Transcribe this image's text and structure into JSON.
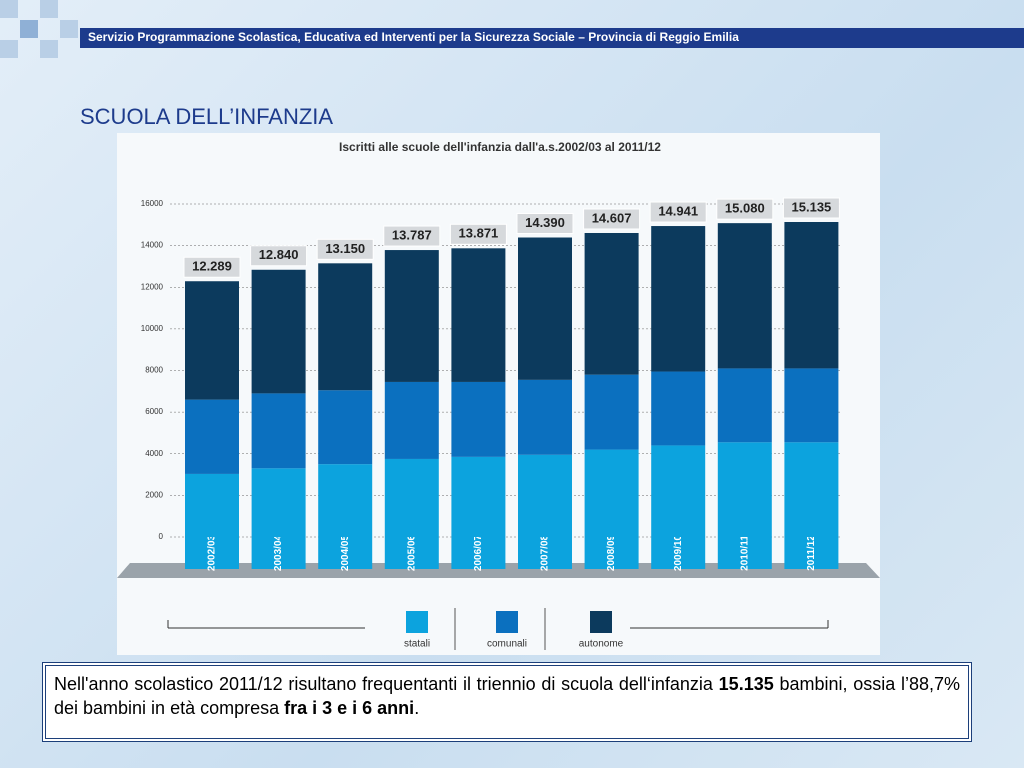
{
  "header": "Servizio Programmazione Scolastica, Educativa ed Interventi per la Sicurezza Sociale – Provincia di Reggio Emilia",
  "slide_title": "SCUOLA DELL’INFANZIA",
  "chart_data": {
    "type": "stacked_bar",
    "title": "Iscritti alle scuole dell'infanzia dall'a.s.2002/03 al 2011/12",
    "categories": [
      "2002/03",
      "2003/04",
      "2004/05",
      "2005/06",
      "2006/07",
      "2007/08",
      "2008/09",
      "2009/10",
      "2010/11",
      "2011/12"
    ],
    "series": [
      {
        "name": "statali",
        "color": "#0ca3de",
        "values": [
          3030,
          3300,
          3500,
          3750,
          3850,
          3950,
          4200,
          4400,
          4550,
          4550
        ]
      },
      {
        "name": "comunali",
        "color": "#0b70bf",
        "values": [
          3570,
          3600,
          3550,
          3700,
          3600,
          3600,
          3600,
          3550,
          3550,
          3550
        ]
      },
      {
        "name": "autonome",
        "color": "#0c3a5d",
        "values": [
          5689,
          5940,
          6100,
          6337,
          6421,
          6840,
          6807,
          6991,
          6980,
          7035
        ]
      }
    ],
    "totals": {
      "values": [
        12289,
        12840,
        13150,
        13787,
        13871,
        14390,
        14607,
        14941,
        15080,
        15135
      ],
      "value_labels": [
        "12.289",
        "12.840",
        "13.150",
        "13.787",
        "13.871",
        "14.390",
        "14.607",
        "14.941",
        "15.080",
        "15.135"
      ]
    },
    "ylim": [
      0,
      16000
    ],
    "yticks": [
      0,
      2000,
      4000,
      6000,
      8000,
      10000,
      12000,
      14000,
      16000
    ],
    "grid": true
  },
  "paragraph": [
    "Nell'anno scolastico 2011/12 risultano frequentanti il triennio di scuola dell‘infanzia ",
    "15.135",
    " bambini, ossia l’88,7% dei bambini in età compresa ",
    "fra i 3 e i 6 anni",
    "."
  ]
}
